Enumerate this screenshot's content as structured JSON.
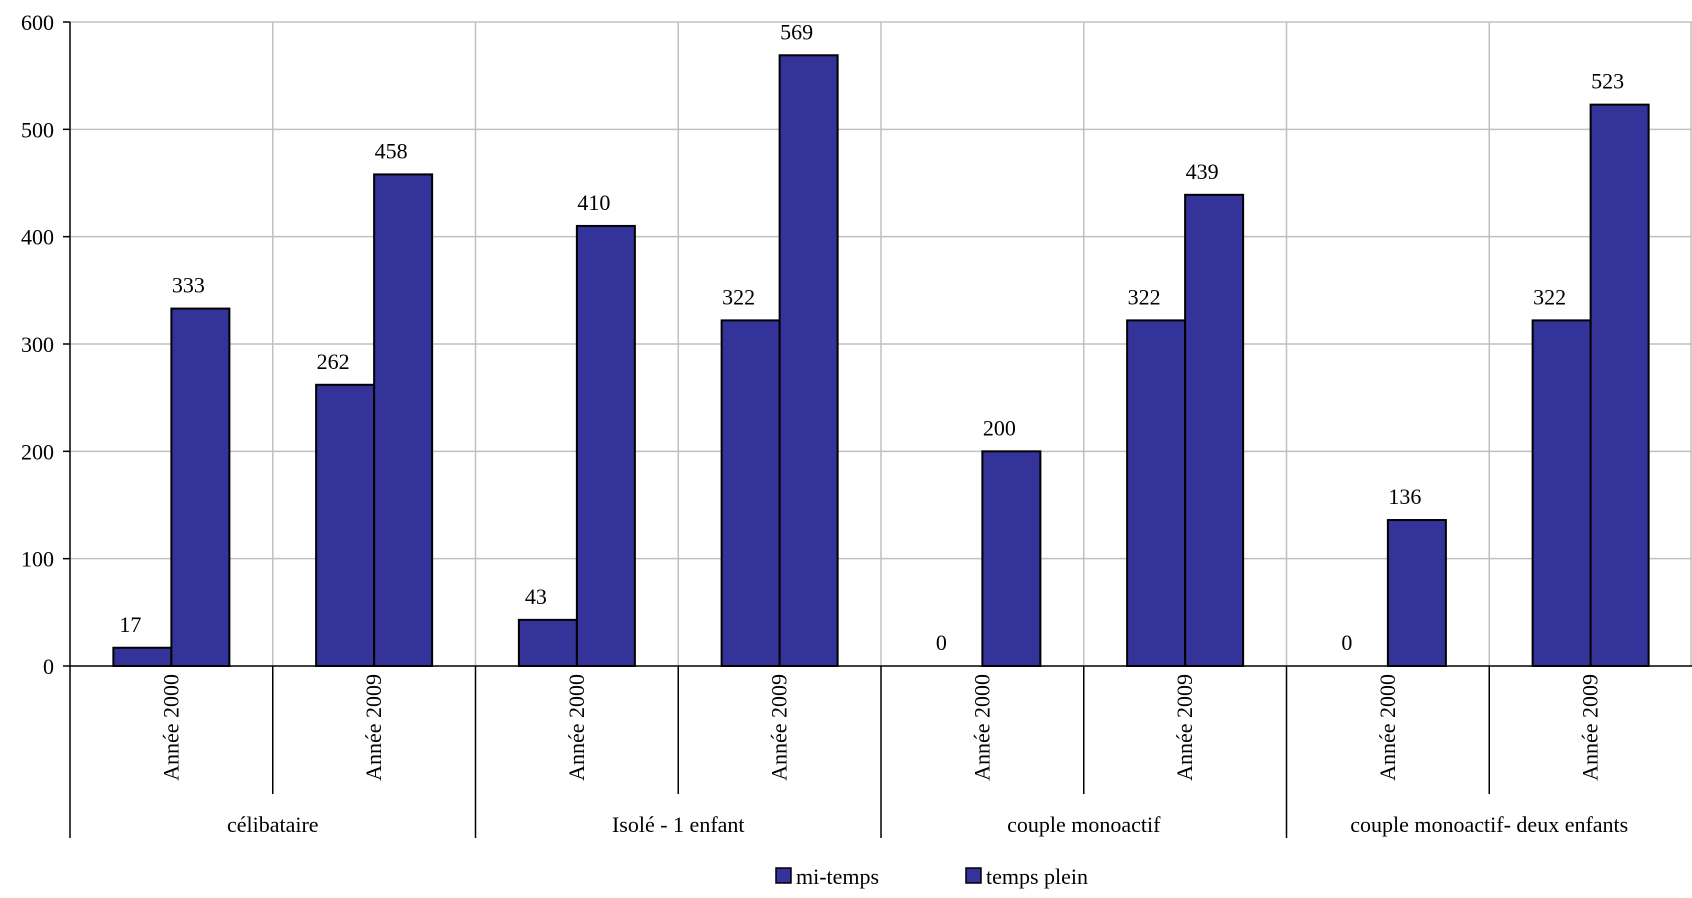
{
  "chart_data": {
    "type": "bar",
    "groups": [
      "célibataire",
      "Isolé - 1 enfant",
      "couple monoactif",
      "couple monoactif- deux enfants"
    ],
    "categories": [
      "Année 2000",
      "Année 2009"
    ],
    "series": [
      {
        "name": "mi-temps",
        "values": [
          [
            17,
            262
          ],
          [
            43,
            322
          ],
          [
            0,
            322
          ],
          [
            0,
            322
          ]
        ]
      },
      {
        "name": "temps plein",
        "values": [
          [
            333,
            458
          ],
          [
            410,
            569
          ],
          [
            200,
            439
          ],
          [
            136,
            523
          ]
        ]
      }
    ],
    "ylim": [
      0,
      600
    ],
    "yticks": [
      0,
      100,
      200,
      300,
      400,
      500,
      600
    ],
    "grid": true,
    "legend_position": "bottom",
    "bar_color": "#333399",
    "bar_stroke": "#000000",
    "grid_color": "#c0c0c0"
  }
}
